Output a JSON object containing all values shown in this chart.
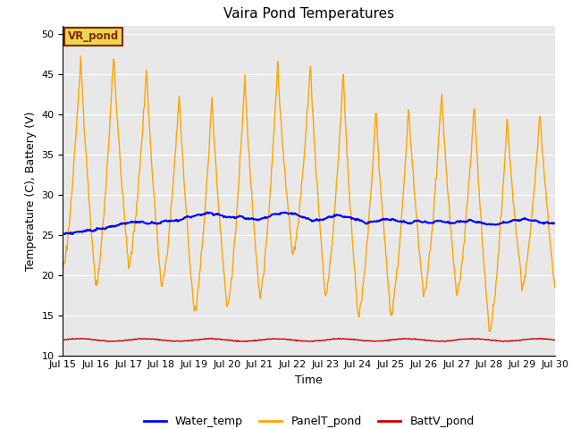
{
  "title": "Vaira Pond Temperatures",
  "xlabel": "Time",
  "ylabel": "Temperature (C), Battery (V)",
  "ylim": [
    10,
    51
  ],
  "yticks": [
    10,
    15,
    20,
    25,
    30,
    35,
    40,
    45,
    50
  ],
  "bg_color": "#e8e8e8",
  "annotation_text": "VR_pond",
  "annotation_bg": "#e8d84a",
  "annotation_border": "#8b2500",
  "water_color": "#0000ff",
  "panel_color": "#ffa500",
  "batt_color": "#cc0000",
  "legend_labels": [
    "Water_temp",
    "PanelT_pond",
    "BattV_pond"
  ],
  "xtick_labels": [
    "Jul 15",
    "Jul 16",
    "Jul 17",
    "Jul 18",
    "Jul 19",
    "Jul 20",
    "Jul 21",
    "Jul 22",
    "Jul 23",
    "Jul 24",
    "Jul 25",
    "Jul 26",
    "Jul 27",
    "Jul 28",
    "Jul 29",
    "Jul 30"
  ],
  "panel_peaks": [
    47.5,
    48.0,
    45.8,
    42.8,
    42.5,
    44.8,
    46.3,
    46.5,
    45.5,
    40.8,
    41.2,
    43.1,
    41.7,
    39.8,
    40.5
  ],
  "panel_troughs": [
    21.0,
    18.5,
    21.2,
    18.5,
    15.5,
    16.0,
    17.5,
    22.5,
    17.5,
    14.8,
    15.2,
    17.5,
    17.5,
    13.0,
    18.5
  ],
  "water_pts": [
    25.1,
    25.3,
    25.5,
    25.7,
    25.9,
    26.2,
    26.5,
    26.7,
    26.5,
    26.5,
    26.8,
    26.8,
    27.3,
    27.5,
    27.8,
    27.5,
    27.2,
    27.3,
    27.0,
    27.0,
    27.5,
    27.8,
    27.7,
    27.2,
    26.8,
    27.0,
    27.5,
    27.3,
    27.0,
    26.5,
    26.8,
    27.0,
    26.8,
    26.5,
    26.8,
    26.5,
    26.8,
    26.5,
    26.7,
    26.8,
    26.5,
    26.3,
    26.5,
    26.8,
    27.0,
    26.8,
    26.5,
    26.5
  ],
  "batt_mean": 12.0,
  "batt_amp": 0.15
}
